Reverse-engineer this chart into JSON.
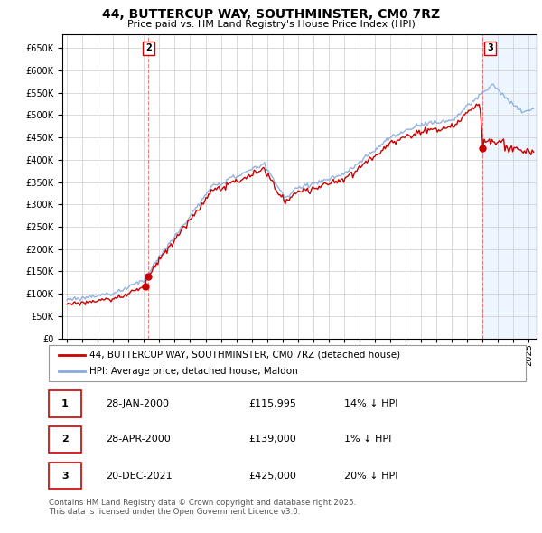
{
  "title": "44, BUTTERCUP WAY, SOUTHMINSTER, CM0 7RZ",
  "subtitle": "Price paid vs. HM Land Registry's House Price Index (HPI)",
  "legend_entry1": "44, BUTTERCUP WAY, SOUTHMINSTER, CM0 7RZ (detached house)",
  "legend_entry2": "HPI: Average price, detached house, Maldon",
  "footnote": "Contains HM Land Registry data © Crown copyright and database right 2025.\nThis data is licensed under the Open Government Licence v3.0.",
  "table": [
    {
      "num": "1",
      "date": "28-JAN-2000",
      "price": "£115,995",
      "hpi": "14% ↓ HPI"
    },
    {
      "num": "2",
      "date": "28-APR-2000",
      "price": "£139,000",
      "hpi": "1% ↓ HPI"
    },
    {
      "num": "3",
      "date": "20-DEC-2021",
      "price": "£425,000",
      "hpi": "20% ↓ HPI"
    }
  ],
  "ylim": [
    0,
    680000
  ],
  "yticks": [
    0,
    50000,
    100000,
    150000,
    200000,
    250000,
    300000,
    350000,
    400000,
    450000,
    500000,
    550000,
    600000,
    650000
  ],
  "xstart": 1994.7,
  "xend": 2025.5,
  "sale_color": "#cc0000",
  "hpi_color": "#88aadd",
  "hpi_shade_color": "#ddeeff",
  "grid_color": "#cccccc",
  "background_color": "#ffffff",
  "annotation_box_color": "#cc0000",
  "sale2_x": 2000.29,
  "sale1_x": 2000.07,
  "sale3_x": 2021.97,
  "sale1_price": 115995,
  "sale2_price": 139000,
  "sale3_price": 425000
}
